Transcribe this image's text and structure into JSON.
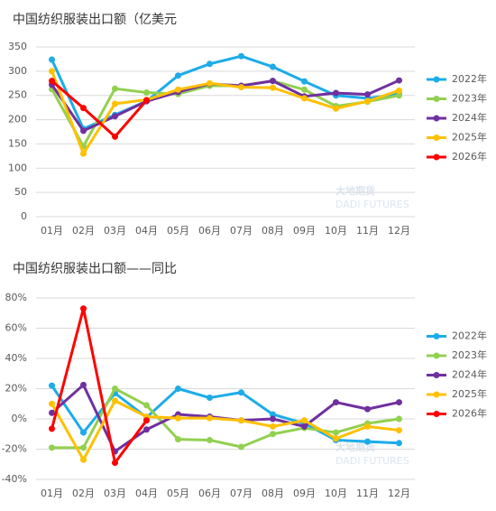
{
  "watermark": {
    "cn": "大地期货",
    "en": "DADI FUTURES"
  },
  "chart_data": [
    {
      "type": "line",
      "title": "中国纺织服装出口额（亿美元",
      "grid": true,
      "legend": "right",
      "categories": [
        "01月",
        "02月",
        "03月",
        "04月",
        "05月",
        "06月",
        "07月",
        "08月",
        "09月",
        "10月",
        "11月",
        "12月"
      ],
      "ylim": [
        0,
        350
      ],
      "yticks": [
        0,
        50,
        100,
        150,
        200,
        250,
        300,
        350
      ],
      "series": [
        {
          "name": "2022年",
          "color": "#1cace8",
          "values": [
            324,
            181,
            210,
            238,
            291,
            315,
            331,
            309,
            279,
            250,
            244,
            253
          ]
        },
        {
          "name": "2023年",
          "color": "#92d050",
          "values": [
            263,
            145,
            264,
            256,
            253,
            270,
            270,
            280,
            262,
            228,
            237,
            250
          ]
        },
        {
          "name": "2024年",
          "color": "#7030a0",
          "values": [
            272,
            177,
            207,
            238,
            257,
            274,
            270,
            280,
            248,
            255,
            252,
            281
          ]
        },
        {
          "name": "2025年",
          "color": "#ffc000",
          "values": [
            300,
            130,
            233,
            241,
            262,
            275,
            267,
            266,
            244,
            223,
            238,
            260
          ]
        },
        {
          "name": "2026年",
          "color": "#ff0000",
          "values": [
            280,
            224,
            165,
            240,
            null,
            null,
            null,
            null,
            null,
            null,
            null,
            null
          ]
        }
      ]
    },
    {
      "type": "line",
      "title": "中国纺织服装出口额——同比",
      "grid": true,
      "legend": "right",
      "categories": [
        "01月",
        "02月",
        "03月",
        "04月",
        "05月",
        "06月",
        "07月",
        "08月",
        "09月",
        "10月",
        "11月",
        "12月"
      ],
      "ylim": [
        -40,
        80
      ],
      "yticks": [
        {
          "value": -40,
          "label": "-40%"
        },
        {
          "value": -20,
          "label": "-20%"
        },
        {
          "value": 0,
          "label": "0%"
        },
        {
          "value": 20,
          "label": "20%"
        },
        {
          "value": 40,
          "label": "40%"
        },
        {
          "value": 60,
          "label": "60%"
        },
        {
          "value": 80,
          "label": "80%"
        }
      ],
      "series": [
        {
          "name": "2022年",
          "color": "#1cace8",
          "values": [
            22,
            -9,
            17,
            1,
            20,
            14,
            17.5,
            3,
            -3,
            -14,
            -15,
            -16
          ]
        },
        {
          "name": "2023年",
          "color": "#92d050",
          "values": [
            -19,
            -19,
            20,
            9,
            -13.5,
            -14,
            -18.5,
            -10,
            -6,
            -9,
            -3,
            0
          ]
        },
        {
          "name": "2024年",
          "color": "#7030a0",
          "values": [
            4,
            22.5,
            -21.5,
            -7,
            3,
            1.5,
            -1,
            0,
            -5,
            11,
            6.5,
            11
          ]
        },
        {
          "name": "2025年",
          "color": "#ffc000",
          "values": [
            10,
            -27,
            12,
            1.5,
            0.5,
            0.5,
            -1,
            -5,
            -1,
            -13,
            -5,
            -7.5
          ]
        },
        {
          "name": "2026年",
          "color": "#ff0000",
          "values": [
            -6.5,
            73,
            -29,
            -1,
            null,
            null,
            null,
            null,
            null,
            null,
            null,
            null
          ]
        }
      ]
    }
  ]
}
